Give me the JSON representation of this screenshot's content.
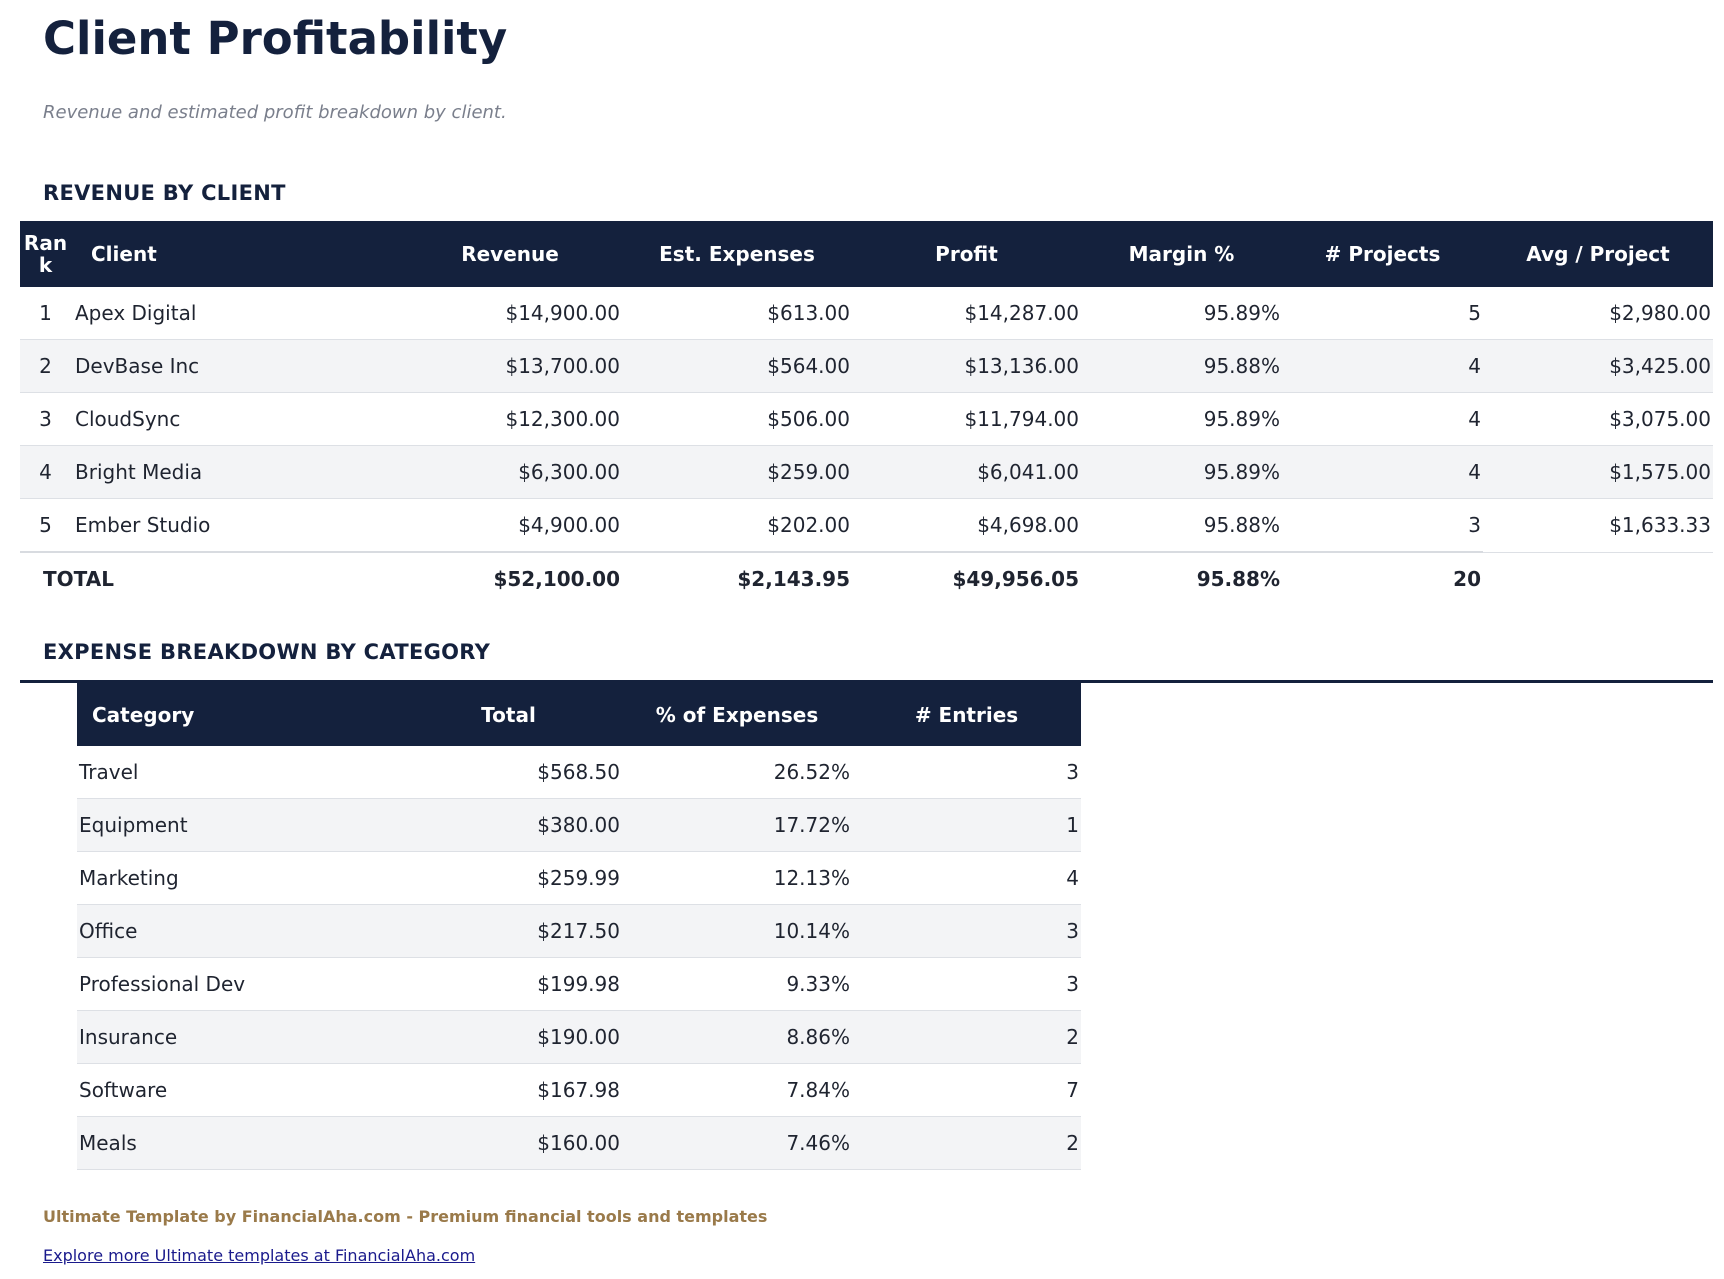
{
  "title": "Client Profitability",
  "subtitle": "Revenue and estimated profit breakdown by client.",
  "revenue_section": {
    "heading": "REVENUE BY CLIENT",
    "columns": [
      "Rank",
      "Client",
      "Revenue",
      "Est. Expenses",
      "Profit",
      "Margin %",
      "# Projects",
      "Avg / Project"
    ],
    "rows": [
      [
        "1",
        "Apex Digital",
        "$14,900.00",
        "$613.00",
        "$14,287.00",
        "95.89%",
        "5",
        "$2,980.00"
      ],
      [
        "2",
        "DevBase Inc",
        "$13,700.00",
        "$564.00",
        "$13,136.00",
        "95.88%",
        "4",
        "$3,425.00"
      ],
      [
        "3",
        "CloudSync",
        "$12,300.00",
        "$506.00",
        "$11,794.00",
        "95.89%",
        "4",
        "$3,075.00"
      ],
      [
        "4",
        "Bright Media",
        "$6,300.00",
        "$259.00",
        "$6,041.00",
        "95.89%",
        "4",
        "$1,575.00"
      ],
      [
        "5",
        "Ember Studio",
        "$4,900.00",
        "$202.00",
        "$4,698.00",
        "95.88%",
        "3",
        "$1,633.33"
      ]
    ],
    "total": [
      "TOTAL",
      "$52,100.00",
      "$2,143.95",
      "$49,956.05",
      "95.88%",
      "20"
    ]
  },
  "expense_section": {
    "heading": "EXPENSE BREAKDOWN BY CATEGORY",
    "columns": [
      "Category",
      "Total",
      "% of Expenses",
      "# Entries"
    ],
    "rows": [
      [
        "Travel",
        "$568.50",
        "26.52%",
        "3"
      ],
      [
        "Equipment",
        "$380.00",
        "17.72%",
        "1"
      ],
      [
        "Marketing",
        "$259.99",
        "12.13%",
        "4"
      ],
      [
        "Office",
        "$217.50",
        "10.14%",
        "3"
      ],
      [
        "Professional Dev",
        "$199.98",
        "9.33%",
        "3"
      ],
      [
        "Insurance",
        "$190.00",
        "8.86%",
        "2"
      ],
      [
        "Software",
        "$167.98",
        "7.84%",
        "7"
      ],
      [
        "Meals",
        "$160.00",
        "7.46%",
        "2"
      ]
    ]
  },
  "footer": {
    "credit": "Ultimate Template by FinancialAha.com - Premium financial tools and templates",
    "link": "Explore more Ultimate templates at FinancialAha.com"
  }
}
